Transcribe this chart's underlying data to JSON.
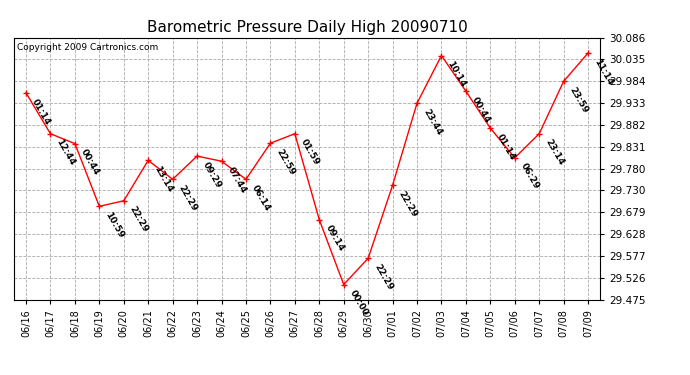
{
  "title": "Barometric Pressure Daily High 20090710",
  "copyright": "Copyright 2009 Cartronics.com",
  "dates": [
    "06/16",
    "06/17",
    "06/18",
    "06/19",
    "06/20",
    "06/21",
    "06/22",
    "06/23",
    "06/24",
    "06/25",
    "06/26",
    "06/27",
    "06/28",
    "06/29",
    "06/30",
    "07/01",
    "07/02",
    "07/03",
    "07/04",
    "07/05",
    "07/06",
    "07/07",
    "07/08",
    "07/09"
  ],
  "values": [
    29.957,
    29.862,
    29.839,
    29.693,
    29.706,
    29.8,
    29.756,
    29.81,
    29.798,
    29.756,
    29.84,
    29.862,
    29.662,
    29.511,
    29.572,
    29.742,
    29.933,
    30.044,
    29.961,
    29.875,
    29.806,
    29.862,
    29.984,
    30.05
  ],
  "annotations": [
    "01:14",
    "12:44",
    "00:44",
    "10:59",
    "22:29",
    "13:14",
    "22:29",
    "09:29",
    "07:44",
    "06:14",
    "22:59",
    "01:59",
    "09:14",
    "00:00",
    "22:29",
    "22:29",
    "23:44",
    "10:14",
    "00:44",
    "01:14",
    "06:29",
    "23:14",
    "23:59",
    "11:14"
  ],
  "ylim_min": 29.475,
  "ylim_max": 30.086,
  "yticks": [
    29.475,
    29.526,
    29.577,
    29.628,
    29.679,
    29.73,
    29.78,
    29.831,
    29.882,
    29.933,
    29.984,
    30.035,
    30.086
  ],
  "line_color": "red",
  "marker_color": "red",
  "bg_color": "white",
  "grid_color": "#aaaaaa",
  "title_fontsize": 11,
  "annot_fontsize": 6.5,
  "copyright_fontsize": 6.5,
  "tick_fontsize": 7.5,
  "xtick_fontsize": 7
}
